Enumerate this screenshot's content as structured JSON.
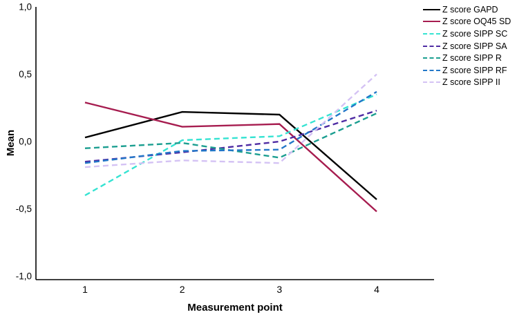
{
  "figure": {
    "background": "#ffffff"
  },
  "chart_data": {
    "type": "line",
    "title": "",
    "xlabel": "Measurement point",
    "ylabel": "Mean",
    "x": [
      1,
      2,
      3,
      4
    ],
    "xtick_labels": [
      "1",
      "2",
      "3",
      "4"
    ],
    "ylim": [
      -1.0,
      1.0
    ],
    "ytick_values": [
      1.0,
      0.5,
      0.0,
      -0.5,
      -1.0
    ],
    "ytick_labels": [
      "1,0",
      "0,5",
      "0,0",
      "-0,5",
      "-1,0"
    ],
    "grid": false,
    "legend_position": "outside-top-right",
    "decimal_separator": "comma",
    "series": [
      {
        "name": "Z score GAPD",
        "color": "#000000",
        "style": "solid",
        "values": [
          0.03,
          0.22,
          0.2,
          -0.43
        ]
      },
      {
        "name": "Z score OQ45 SD",
        "color": "#A61C4F",
        "style": "solid",
        "values": [
          0.29,
          0.11,
          0.13,
          -0.52
        ]
      },
      {
        "name": "Z score SIPP SC",
        "color": "#35E3D2",
        "style": "dashed",
        "values": [
          -0.4,
          0.01,
          0.04,
          0.35
        ]
      },
      {
        "name": "Z score SIPP SA",
        "color": "#4E2BA3",
        "style": "dashed",
        "values": [
          -0.15,
          -0.08,
          0.0,
          0.23
        ]
      },
      {
        "name": "Z score SIPP R",
        "color": "#1B9E90",
        "style": "dashed",
        "values": [
          -0.05,
          -0.01,
          -0.12,
          0.21
        ]
      },
      {
        "name": "Z score SIPP RF",
        "color": "#2277C8",
        "style": "dashed",
        "values": [
          -0.16,
          -0.07,
          -0.06,
          0.37
        ]
      },
      {
        "name": "Z score SIPP II",
        "color": "#D4C2F4",
        "style": "dashed",
        "values": [
          -0.19,
          -0.14,
          -0.16,
          0.5
        ]
      }
    ]
  }
}
